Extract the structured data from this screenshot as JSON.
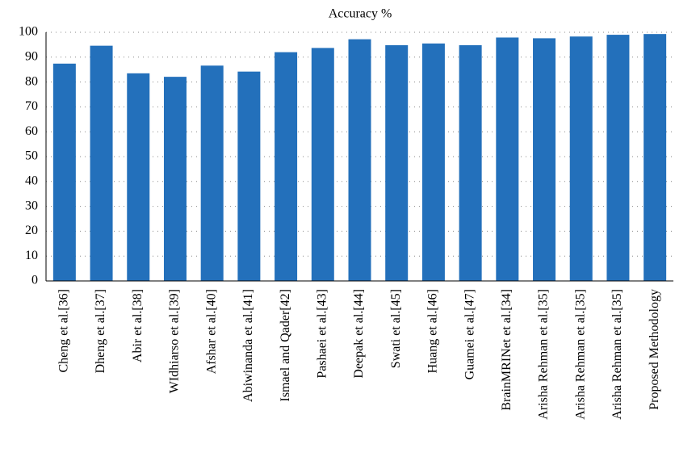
{
  "chart_data": {
    "type": "bar",
    "title": "Accuracy %",
    "categories": [
      "Cheng et al.[36]",
      "Dheng et al.[37]",
      "Abir et al.[38]",
      "WIdhiarso et al.[39]",
      "Afshar et al.[40]",
      "Abiwinanda et al.[41]",
      "Ismael and Qader[42]",
      "Pashaei et al.[43]",
      "Deepak et al.[44]",
      "Swati et al.[45]",
      "Huang et al.[46]",
      "Guamei et al.[47]",
      "BrainMRINet et al.[34]",
      "Arisha Rehman et al.[35]",
      "Arisha Rehman et al.[35]",
      "Arisha Rehman et al.[35]",
      "Proposed Methodology"
    ],
    "values": [
      87.4,
      94.6,
      83.5,
      82.1,
      86.6,
      84.2,
      92.0,
      93.7,
      97.2,
      94.8,
      95.5,
      94.8,
      97.9,
      97.6,
      98.3,
      99.0,
      99.3
    ],
    "color": "#2370bb",
    "ylim": [
      0,
      100
    ],
    "yticks": [
      0,
      10,
      20,
      30,
      40,
      50,
      60,
      70,
      80,
      90,
      100
    ],
    "grid": true
  }
}
